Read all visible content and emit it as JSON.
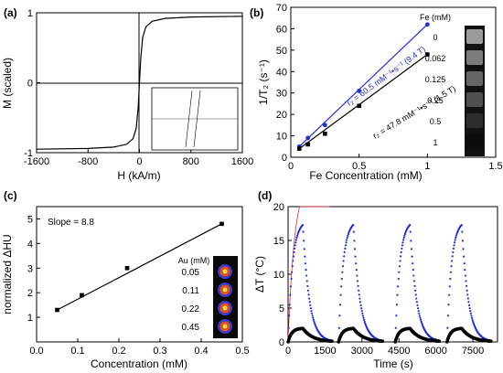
{
  "colors": {
    "blue": "#1f2fd6",
    "black": "#000000",
    "red": "#e03030",
    "inset_bg": "#ffffff"
  },
  "chart_data": [
    {
      "type": "line",
      "panel_label": "(a)",
      "title": "",
      "xlabel": "H (kA/m)",
      "ylabel": "M (scaled)",
      "xlim": [
        -1600,
        1600
      ],
      "ylim": [
        -1,
        1
      ],
      "xticks": [
        "-1600",
        "-800",
        "0",
        "800",
        "1600"
      ],
      "yticks": [
        "-1",
        "0",
        "1"
      ],
      "series": [
        {
          "values_x": [
            -1600,
            -800,
            -400,
            -200,
            -100,
            -50,
            -20,
            0,
            20,
            50,
            100,
            200,
            400,
            800,
            1600
          ],
          "values_y": [
            -0.95,
            -0.94,
            -0.92,
            -0.88,
            -0.8,
            -0.65,
            -0.35,
            0,
            0.35,
            0.65,
            0.8,
            0.88,
            0.92,
            0.94,
            0.95
          ]
        }
      ],
      "inset": "zoomed hysteresis loop near origin"
    },
    {
      "type": "scatter",
      "panel_label": "(b)",
      "xlabel": "Fe Concentration (mM)",
      "ylabel": "1/T₂ (s⁻¹)",
      "xlim": [
        0,
        1.5
      ],
      "ylim": [
        0,
        70
      ],
      "xticks": [
        "0",
        "0.5",
        "1",
        "1.5"
      ],
      "yticks": [
        "0",
        "10",
        "20",
        "30",
        "40",
        "50",
        "60",
        "70"
      ],
      "series": [
        {
          "x": [
            0.062,
            0.125,
            0.25,
            0.5,
            1.0
          ],
          "y": [
            5,
            9,
            15,
            31,
            62
          ],
          "fit_slope": 60.5,
          "annotation": "r₂ = 60.5 mM⁻¹•s⁻¹ (9.4 T)"
        },
        {
          "x": [
            0.062,
            0.125,
            0.25,
            0.5,
            1.0
          ],
          "y": [
            4,
            6,
            11,
            24,
            48
          ],
          "fit_slope": 47.8,
          "annotation": "r₂ = 47.8 mM⁻¹•s⁻¹ (1.5 T)"
        }
      ],
      "legend_title": "Fe (mM)",
      "legend_items": [
        "0",
        "0.062",
        "0.125",
        "0.25",
        "0.5",
        "1"
      ]
    },
    {
      "type": "scatter",
      "panel_label": "(c)",
      "xlabel": "Concentration (mM)",
      "ylabel": "normalized ΔHU",
      "xlim": [
        0,
        0.5
      ],
      "ylim": [
        0,
        5.5
      ],
      "xticks": [
        "0.0",
        "0.1",
        "0.2",
        "0.3",
        "0.4",
        "0.5"
      ],
      "yticks": [
        "1",
        "2",
        "3",
        "4",
        "5"
      ],
      "annotation": "Slope = 8.8",
      "series": [
        {
          "x": [
            0.05,
            0.11,
            0.22,
            0.45
          ],
          "y": [
            1.3,
            1.9,
            3.0,
            4.8
          ]
        }
      ],
      "legend_title": "Au (mM)",
      "legend_items": [
        "0.05",
        "0.11",
        "0.22",
        "0.45"
      ]
    },
    {
      "type": "line",
      "panel_label": "(d)",
      "xlabel": "Time (s)",
      "ylabel": "ΔT (°C)",
      "xlim": [
        0,
        8500
      ],
      "ylim": [
        0,
        20
      ],
      "xticks": [
        "0",
        "1500",
        "3000",
        "4500",
        "6000",
        "7500"
      ],
      "yticks": [
        "0",
        "5",
        "10",
        "15",
        "20"
      ],
      "cycles_start": [
        0,
        2050,
        4350,
        6450
      ],
      "heat_duration": 600,
      "series": [
        {
          "peak": 17.3,
          "heat_tau": 180,
          "cool_tau": 260
        },
        {
          "peak": 2.0,
          "heat_tau": 150,
          "cool_tau": 400
        }
      ]
    }
  ]
}
